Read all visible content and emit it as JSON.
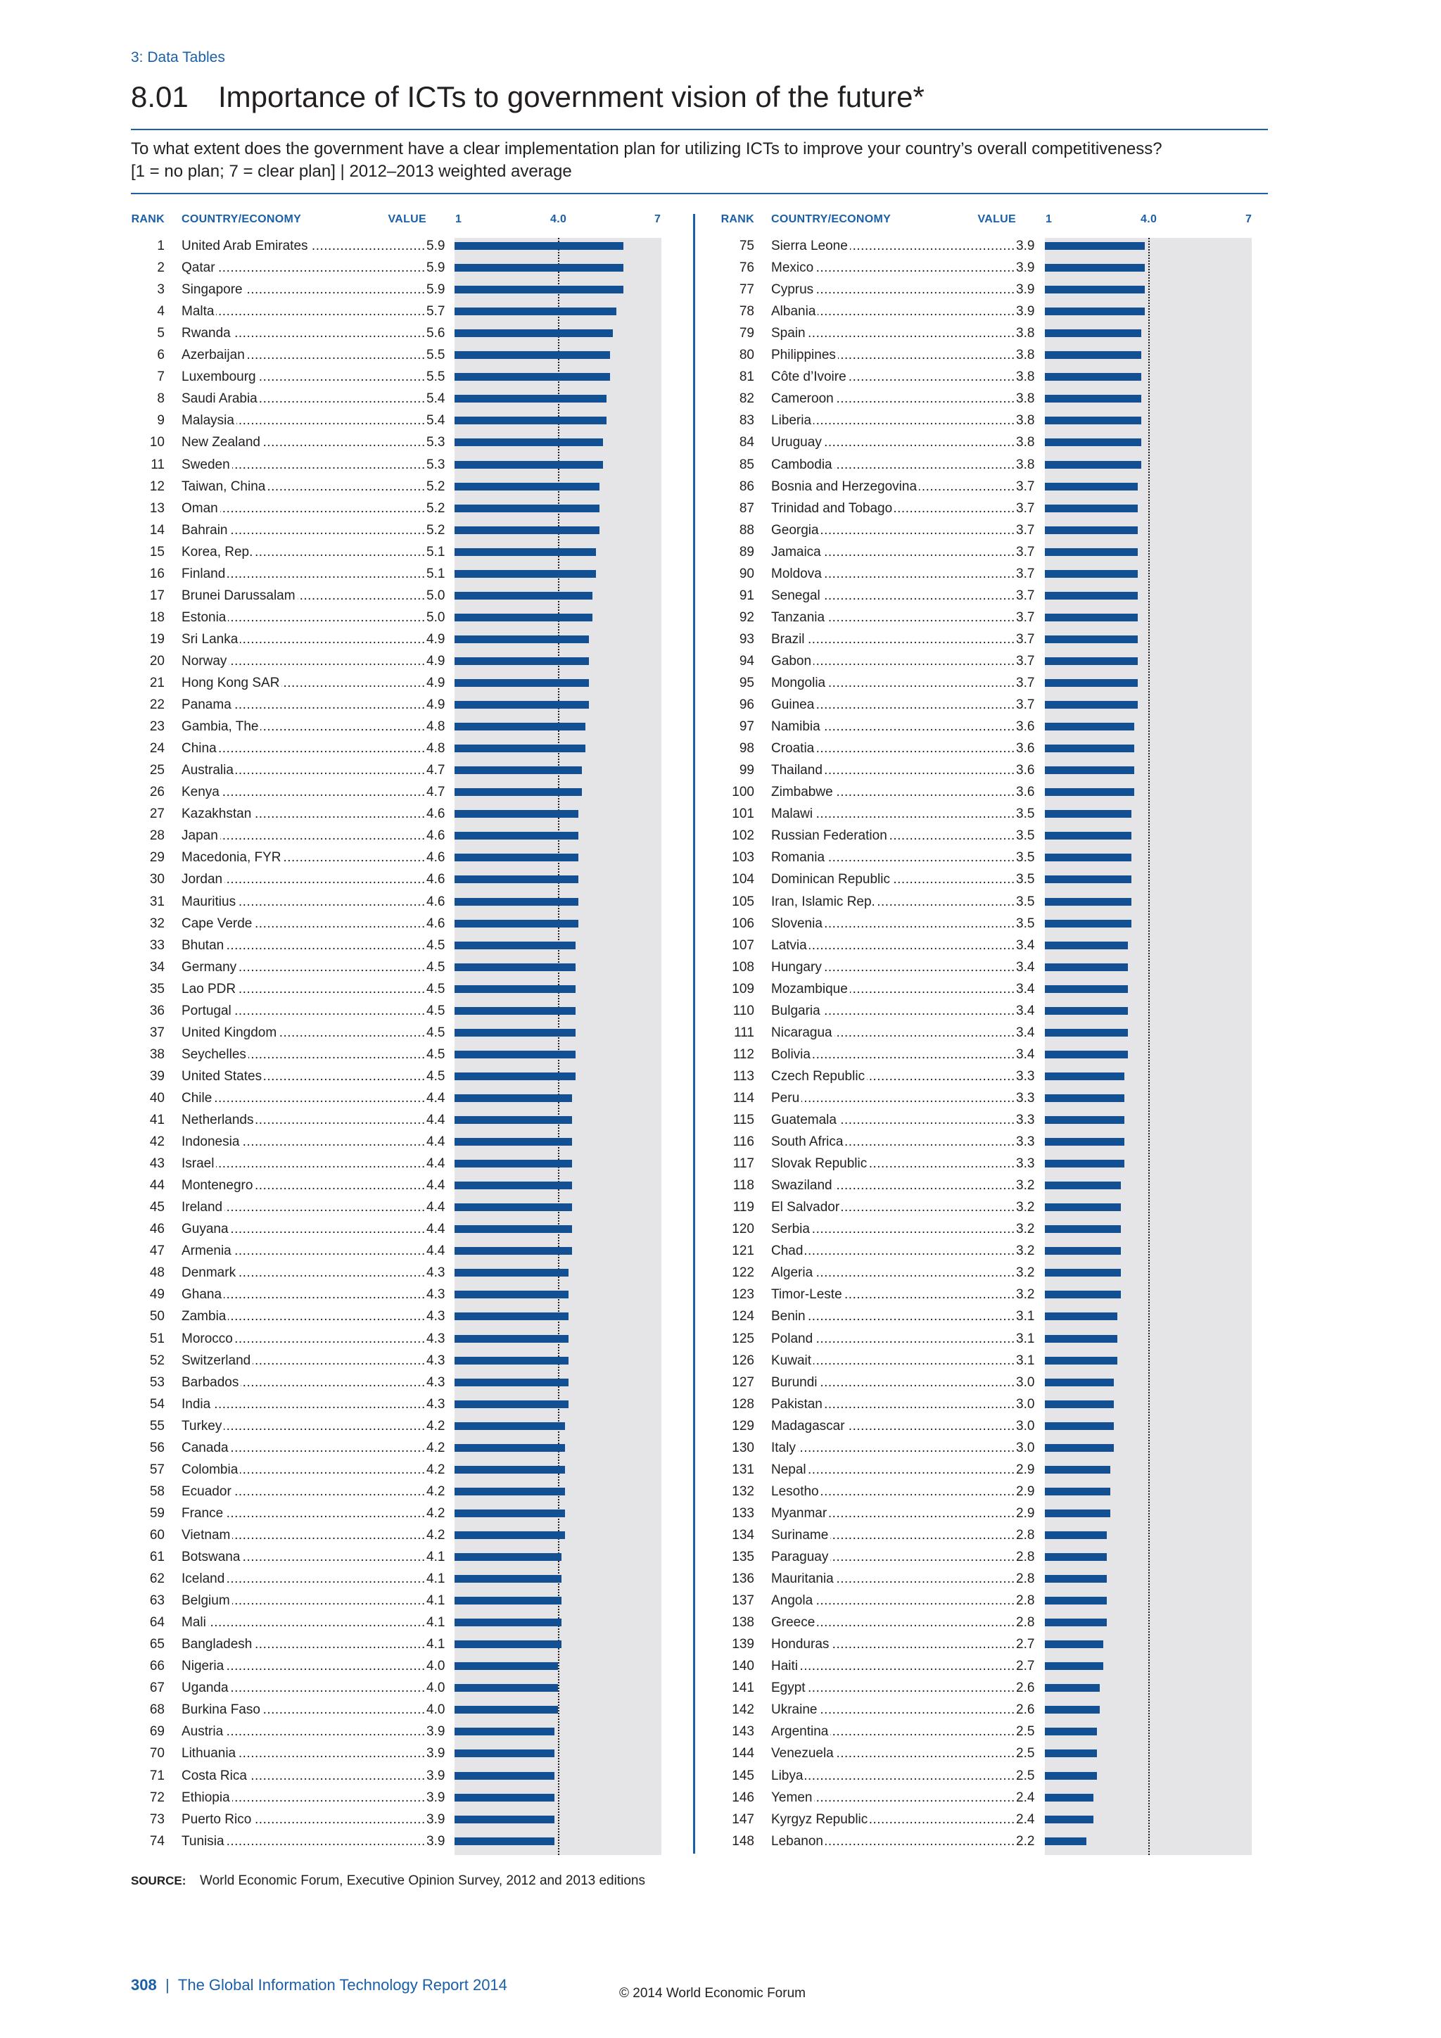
{
  "header": {
    "section": "3: Data Tables",
    "number": "8.01",
    "title": "Importance of ICTs to government vision of the future*",
    "question_line1": "To what extent does the government have a clear implementation plan for utilizing ICTs to improve your country’s overall competitiveness?",
    "question_line2": "[1 = no plan; 7 = clear plan]  |  2012–2013 weighted average"
  },
  "columns": {
    "rank": "RANK",
    "country": "COUNTRY/ECONOMY",
    "value": "VALUE",
    "scale_min": "1",
    "scale_mid": "4.0",
    "scale_max": "7"
  },
  "chart_data": {
    "type": "bar",
    "orientation": "horizontal",
    "xlim": [
      1,
      7
    ],
    "reference_line": 4.0,
    "categories": [
      "United Arab Emirates",
      "Qatar",
      "Singapore",
      "Malta",
      "Rwanda",
      "Azerbaijan",
      "Luxembourg",
      "Saudi Arabia",
      "Malaysia",
      "New Zealand",
      "Sweden",
      "Taiwan, China",
      "Oman",
      "Bahrain",
      "Korea, Rep.",
      "Finland",
      "Brunei Darussalam",
      "Estonia",
      "Sri Lanka",
      "Norway",
      "Hong Kong SAR",
      "Panama",
      "Gambia, The",
      "China",
      "Australia",
      "Kenya",
      "Kazakhstan",
      "Japan",
      "Macedonia, FYR",
      "Jordan",
      "Mauritius",
      "Cape Verde",
      "Bhutan",
      "Germany",
      "Lao PDR",
      "Portugal",
      "United Kingdom",
      "Seychelles",
      "United States",
      "Chile",
      "Netherlands",
      "Indonesia",
      "Israel",
      "Montenegro",
      "Ireland",
      "Guyana",
      "Armenia",
      "Denmark",
      "Ghana",
      "Zambia",
      "Morocco",
      "Switzerland",
      "Barbados",
      "India",
      "Turkey",
      "Canada",
      "Colombia",
      "Ecuador",
      "France",
      "Vietnam",
      "Botswana",
      "Iceland",
      "Belgium",
      "Mali",
      "Bangladesh",
      "Nigeria",
      "Uganda",
      "Burkina Faso",
      "Austria",
      "Lithuania",
      "Costa Rica",
      "Ethiopia",
      "Puerto Rico",
      "Tunisia",
      "Sierra Leone",
      "Mexico",
      "Cyprus",
      "Albania",
      "Spain",
      "Philippines",
      "Côte d’Ivoire",
      "Cameroon",
      "Liberia",
      "Uruguay",
      "Cambodia",
      "Bosnia and Herzegovina",
      "Trinidad and Tobago",
      "Georgia",
      "Jamaica",
      "Moldova",
      "Senegal",
      "Tanzania",
      "Brazil",
      "Gabon",
      "Mongolia",
      "Guinea",
      "Namibia",
      "Croatia",
      "Thailand",
      "Zimbabwe",
      "Malawi",
      "Russian Federation",
      "Romania",
      "Dominican Republic",
      "Iran, Islamic Rep.",
      "Slovenia",
      "Latvia",
      "Hungary",
      "Mozambique",
      "Bulgaria",
      "Nicaragua",
      "Bolivia",
      "Czech Republic",
      "Peru",
      "Guatemala",
      "South Africa",
      "Slovak Republic",
      "Swaziland",
      "El Salvador",
      "Serbia",
      "Chad",
      "Algeria",
      "Timor-Leste",
      "Benin",
      "Poland",
      "Kuwait",
      "Burundi",
      "Pakistan",
      "Madagascar",
      "Italy",
      "Nepal",
      "Lesotho",
      "Myanmar",
      "Suriname",
      "Paraguay",
      "Mauritania",
      "Angola",
      "Greece",
      "Honduras",
      "Haiti",
      "Egypt",
      "Ukraine",
      "Argentina",
      "Venezuela",
      "Libya",
      "Yemen",
      "Kyrgyz Republic",
      "Lebanon"
    ],
    "values": [
      5.9,
      5.9,
      5.9,
      5.7,
      5.6,
      5.5,
      5.5,
      5.4,
      5.4,
      5.3,
      5.3,
      5.2,
      5.2,
      5.2,
      5.1,
      5.1,
      5.0,
      5.0,
      4.9,
      4.9,
      4.9,
      4.9,
      4.8,
      4.8,
      4.7,
      4.7,
      4.6,
      4.6,
      4.6,
      4.6,
      4.6,
      4.6,
      4.5,
      4.5,
      4.5,
      4.5,
      4.5,
      4.5,
      4.5,
      4.4,
      4.4,
      4.4,
      4.4,
      4.4,
      4.4,
      4.4,
      4.4,
      4.3,
      4.3,
      4.3,
      4.3,
      4.3,
      4.3,
      4.3,
      4.2,
      4.2,
      4.2,
      4.2,
      4.2,
      4.2,
      4.1,
      4.1,
      4.1,
      4.1,
      4.1,
      4.0,
      4.0,
      4.0,
      3.9,
      3.9,
      3.9,
      3.9,
      3.9,
      3.9,
      3.9,
      3.9,
      3.9,
      3.9,
      3.8,
      3.8,
      3.8,
      3.8,
      3.8,
      3.8,
      3.8,
      3.7,
      3.7,
      3.7,
      3.7,
      3.7,
      3.7,
      3.7,
      3.7,
      3.7,
      3.7,
      3.7,
      3.6,
      3.6,
      3.6,
      3.6,
      3.5,
      3.5,
      3.5,
      3.5,
      3.5,
      3.5,
      3.4,
      3.4,
      3.4,
      3.4,
      3.4,
      3.4,
      3.3,
      3.3,
      3.3,
      3.3,
      3.3,
      3.2,
      3.2,
      3.2,
      3.2,
      3.2,
      3.2,
      3.1,
      3.1,
      3.1,
      3.0,
      3.0,
      3.0,
      3.0,
      2.9,
      2.9,
      2.9,
      2.8,
      2.8,
      2.8,
      2.8,
      2.8,
      2.7,
      2.7,
      2.6,
      2.6,
      2.5,
      2.5,
      2.5,
      2.4,
      2.4,
      2.2
    ]
  },
  "footer": {
    "source_label": "SOURCE:",
    "source_text": "World Economic Forum, Executive Opinion Survey, 2012 and 2013 editions",
    "page_number": "308",
    "separator": "|",
    "publication": "The Global Information Technology Report 2014",
    "copyright": "© 2014 World Economic Forum"
  }
}
